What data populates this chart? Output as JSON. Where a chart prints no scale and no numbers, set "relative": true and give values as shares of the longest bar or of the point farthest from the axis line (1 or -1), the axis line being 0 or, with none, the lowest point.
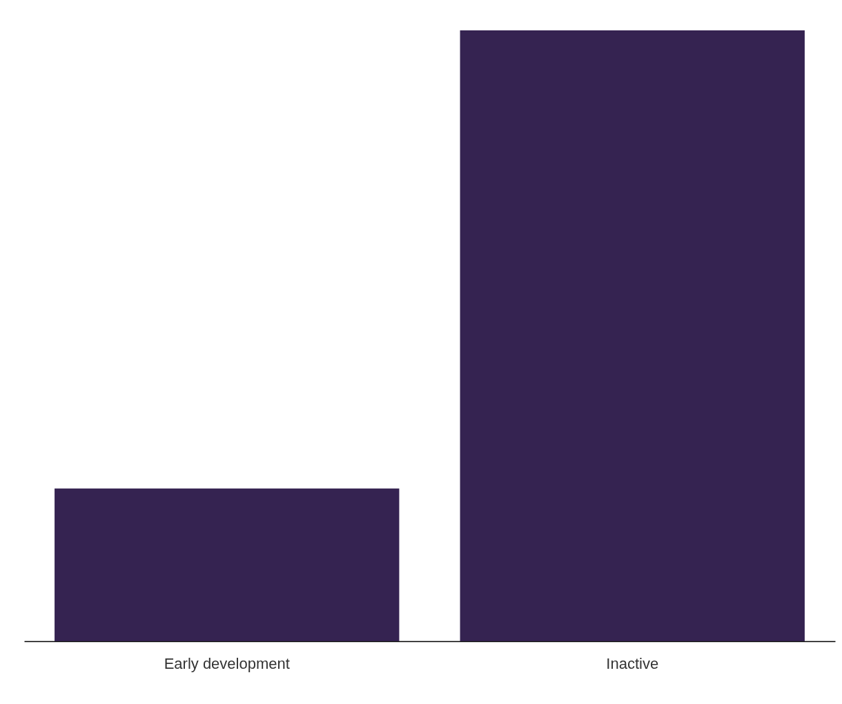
{
  "chart_data": {
    "type": "bar",
    "relative": true,
    "categories": [
      "Early development",
      "Inactive"
    ],
    "values": [
      0.25,
      1
    ],
    "color": "#352351",
    "grid": false
  }
}
